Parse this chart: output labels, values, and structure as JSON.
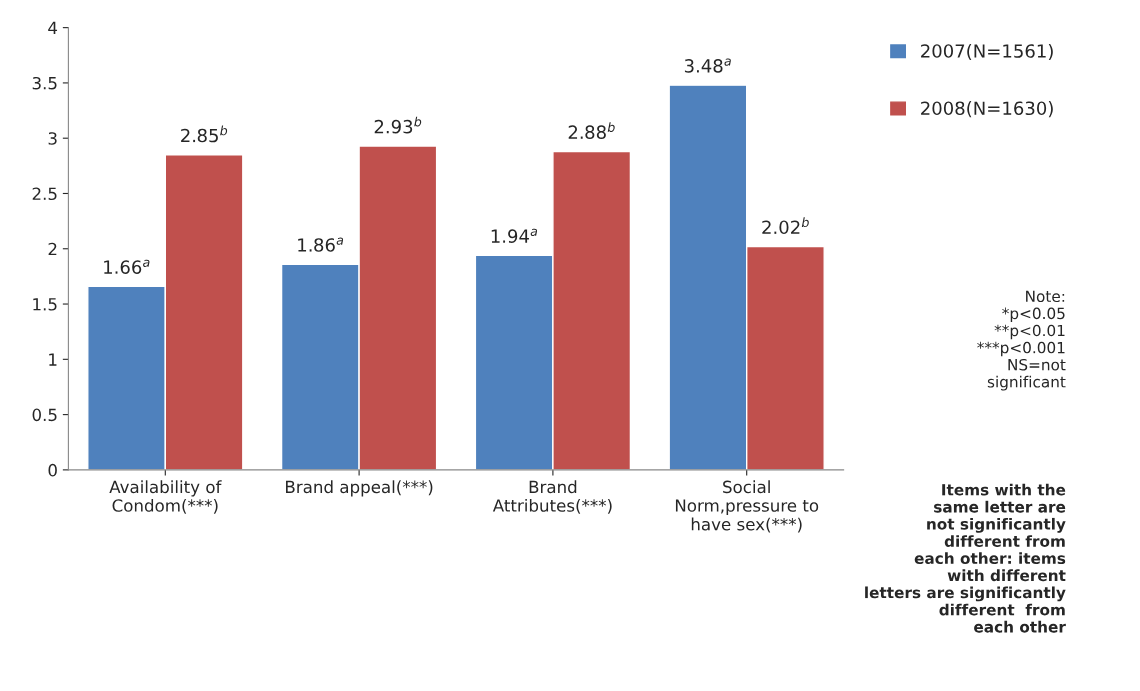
{
  "chart_data": {
    "type": "bar",
    "categories": [
      "Availability of\nCondom(***)",
      "Brand appeal(***)",
      "Brand\nAttributes(***)",
      "Social\nNorm,pressure to\nhave sex(***)"
    ],
    "series": [
      {
        "name": "2007(N=1561)",
        "color": "#4f81bd",
        "values": [
          1.66,
          1.86,
          1.94,
          3.48
        ],
        "value_labels": [
          "1.66$^{a}$",
          "1.86$^{a}$",
          "1.94$^{a}$",
          "3.48$^{a}$"
        ]
      },
      {
        "name": "2008(N=1630)",
        "color": "#c0504d",
        "values": [
          2.85,
          2.93,
          2.88,
          2.02
        ],
        "value_labels": [
          "2.85$^{b}$",
          "2.93$^{b}$",
          "2.88$^{b}$",
          "2.02$^{b}$"
        ]
      }
    ],
    "ylim": [
      0,
      4
    ],
    "yticks": [
      0,
      0.5,
      1,
      1.5,
      2,
      2.5,
      3,
      3.5,
      4
    ],
    "grid": false,
    "legend": "top right",
    "annotations": [
      "Note:\n*p<0.05\n**p<0.01\n***p<0.001\nNS=not\nsignificant",
      "Items with the\nsame letter are\nnot significantly\ndifferent from\neach other: items\nwith different\nletters are significantly\ndifferent  from\neach other"
    ]
  }
}
